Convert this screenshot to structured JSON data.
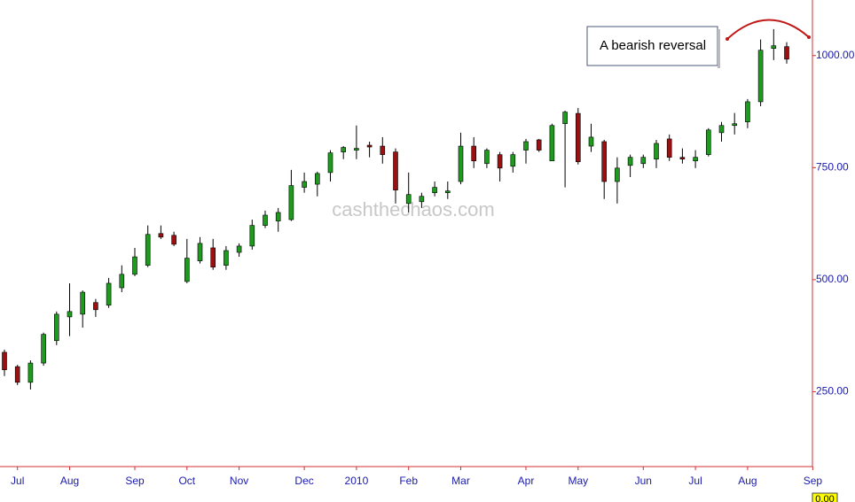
{
  "chart_data": {
    "type": "candlestick",
    "categories": [
      null,
      "Jul",
      null,
      null,
      null,
      "Aug",
      null,
      null,
      null,
      null,
      "Sep",
      null,
      null,
      null,
      "Oct",
      null,
      null,
      null,
      "Nov",
      null,
      null,
      null,
      null,
      "Dec",
      null,
      null,
      null,
      "2010",
      null,
      null,
      null,
      "Feb",
      null,
      null,
      null,
      "Mar",
      null,
      null,
      null,
      null,
      "Apr",
      null,
      null,
      null,
      "May",
      null,
      null,
      null,
      null,
      "Jun",
      null,
      null,
      null,
      "Jul",
      null,
      null,
      null,
      "Aug",
      null,
      null,
      null,
      null,
      "Sep"
    ],
    "open": [
      338,
      306,
      271,
      314,
      364,
      417,
      423,
      449,
      443,
      482,
      512,
      532,
      603,
      599,
      496,
      542,
      571,
      532,
      561,
      575,
      621,
      631,
      634,
      706,
      713,
      739,
      785,
      789,
      800,
      798,
      785,
      670,
      674,
      694,
      694,
      719,
      798,
      759,
      779,
      753,
      789,
      812,
      765,
      848,
      871,
      798,
      808,
      719,
      755,
      759,
      769,
      814,
      773,
      765,
      779,
      828,
      844,
      852,
      897,
      1016,
      1020,
      null,
      null
    ],
    "high": [
      344,
      310,
      320,
      382,
      429,
      492,
      476,
      457,
      504,
      532,
      571,
      621,
      621,
      607,
      591,
      595,
      591,
      575,
      581,
      634,
      654,
      660,
      745,
      739,
      741,
      789,
      798,
      844,
      808,
      818,
      793,
      739,
      694,
      719,
      719,
      828,
      818,
      793,
      785,
      785,
      814,
      814,
      848,
      877,
      883,
      848,
      812,
      773,
      779,
      779,
      812,
      824,
      793,
      789,
      838,
      852,
      872,
      903,
      1036,
      1059,
      1030,
      null,
      null
    ],
    "low": [
      285,
      265,
      255,
      308,
      354,
      374,
      393,
      417,
      437,
      472,
      508,
      528,
      591,
      575,
      492,
      536,
      522,
      522,
      551,
      567,
      615,
      607,
      631,
      694,
      686,
      719,
      769,
      769,
      773,
      759,
      670,
      650,
      660,
      686,
      680,
      713,
      749,
      749,
      719,
      739,
      759,
      785,
      765,
      706,
      757,
      785,
      680,
      670,
      729,
      749,
      749,
      765,
      759,
      749,
      775,
      808,
      824,
      838,
      887,
      990,
      982,
      null,
      null
    ],
    "close": [
      299,
      271,
      314,
      378,
      423,
      429,
      472,
      433,
      492,
      512,
      551,
      601,
      595,
      579,
      548,
      581,
      528,
      565,
      575,
      621,
      644,
      650,
      710,
      719,
      737,
      783,
      795,
      793,
      796,
      779,
      700,
      690,
      686,
      706,
      698,
      798,
      765,
      789,
      749,
      779,
      808,
      789,
      844,
      874,
      763,
      818,
      719,
      749,
      773,
      773,
      804,
      773,
      769,
      773,
      834,
      844,
      848,
      897,
      1012,
      1022,
      992,
      null,
      null
    ],
    "up_color": "#1e9b1e",
    "down_color": "#9b1010",
    "ylim": [
      83,
      1124
    ],
    "yticks": [
      {
        "value": 250,
        "label": "250.00"
      },
      {
        "value": 500,
        "label": "500.00"
      },
      {
        "value": 750,
        "label": "750.00"
      },
      {
        "value": 1000,
        "label": "1000.00"
      }
    ],
    "annotation": "A bearish reversal",
    "watermark": "cashthechaos.com",
    "price_box": "0.00"
  }
}
